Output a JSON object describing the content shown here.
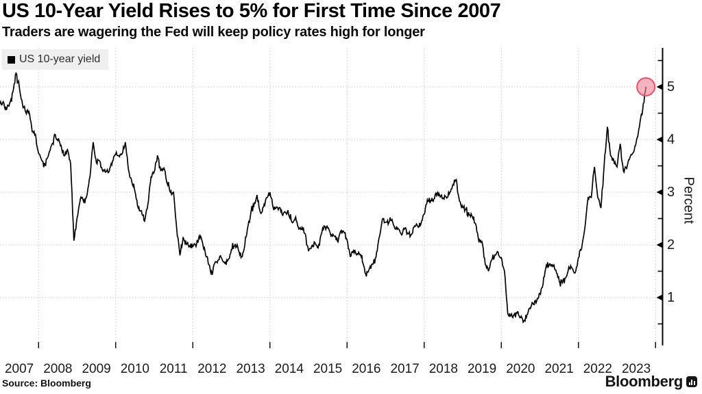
{
  "header": {
    "title": "US 10-Year Yield Rises to 5% for First Time Since 2007",
    "subtitle": "Traders are wagering the Fed will keep policy rates high for longer"
  },
  "legend": {
    "items": [
      {
        "label": "US 10-year yield",
        "swatch_color": "#000000"
      }
    ]
  },
  "footer": {
    "source_label": "Source: Bloomberg",
    "brand": "Bloomberg",
    "brand_icon": "bloomberg-bars-icon"
  },
  "colors": {
    "line": "#000000",
    "grid": "#c8c8c8",
    "axis": "#000000",
    "legend_bg": "#efefef",
    "highlight_fill": "#f38499",
    "highlight_stroke": "#e84964",
    "background": "#ffffff"
  },
  "chart_data": {
    "type": "line",
    "title": "US 10-Year Yield Rises to 5% for First Time Since 2007",
    "subtitle": "Traders are wagering the Fed will keep policy rates high for longer",
    "ylabel": "Percent",
    "xlabel": "",
    "x_tick_labels": [
      "2007",
      "2008",
      "2009",
      "2010",
      "2011",
      "2012",
      "2013",
      "2014",
      "2015",
      "2016",
      "2017",
      "2018",
      "2019",
      "2020",
      "2021",
      "2022",
      "2023"
    ],
    "y_ticks": [
      1,
      2,
      3,
      4,
      5
    ],
    "y_minor_ticks": [
      0.5,
      1.5,
      2.5,
      3.5,
      4.5,
      5.5
    ],
    "ylim": [
      0.1,
      5.75
    ],
    "xlim_years": [
      2007,
      2024
    ],
    "grid": "dotted; horizontal at integer percents, vertical every 2 years",
    "legend_position": "top-left",
    "annotation": {
      "shape": "circle",
      "x_year": 2023.75,
      "y_value": 5.0,
      "meaning": "10-year yield touches 5% in Oct 2023"
    },
    "series": [
      {
        "name": "US 10-year yield",
        "color": "#000000",
        "start_year": 2007,
        "interval_months": 1,
        "units": "percent",
        "values": [
          4.68,
          4.72,
          4.56,
          4.69,
          4.9,
          5.26,
          5.0,
          4.67,
          4.52,
          4.53,
          4.15,
          4.1,
          3.74,
          3.6,
          3.51,
          3.68,
          3.88,
          4.1,
          3.98,
          3.89,
          3.69,
          3.81,
          3.53,
          2.08,
          2.52,
          2.87,
          2.82,
          2.93,
          3.29,
          3.95,
          3.56,
          3.59,
          3.4,
          3.39,
          3.4,
          3.59,
          3.73,
          3.69,
          3.73,
          3.95,
          3.42,
          3.2,
          3.01,
          2.7,
          2.65,
          2.45,
          2.76,
          3.29,
          3.39,
          3.7,
          3.41,
          3.46,
          3.17,
          3.0,
          3.0,
          2.3,
          1.8,
          2.15,
          2.01,
          1.98,
          1.97,
          1.97,
          2.17,
          2.05,
          1.8,
          1.62,
          1.43,
          1.68,
          1.72,
          1.75,
          1.65,
          1.72,
          1.91,
          1.98,
          1.96,
          1.76,
          1.93,
          2.3,
          2.58,
          2.74,
          2.95,
          2.62,
          2.72,
          2.9,
          3.0,
          2.71,
          2.72,
          2.71,
          2.56,
          2.6,
          2.54,
          2.42,
          2.53,
          2.3,
          2.33,
          2.21,
          1.88,
          1.98,
          2.04,
          1.94,
          2.2,
          2.36,
          2.32,
          2.17,
          2.17,
          2.07,
          2.26,
          2.24,
          2.09,
          1.78,
          1.89,
          1.81,
          1.81,
          1.64,
          1.4,
          1.56,
          1.63,
          1.76,
          2.14,
          2.49,
          2.43,
          2.42,
          2.48,
          2.3,
          2.3,
          2.19,
          2.32,
          2.21,
          2.2,
          2.36,
          2.35,
          2.4,
          2.58,
          2.86,
          2.84,
          2.87,
          2.98,
          2.91,
          2.89,
          2.89,
          3.0,
          3.15,
          3.24,
          2.83,
          2.71,
          2.68,
          2.57,
          2.53,
          2.4,
          2.07,
          2.06,
          1.63,
          1.5,
          1.71,
          1.81,
          1.86,
          1.76,
          1.5,
          0.7,
          0.66,
          0.67,
          0.73,
          0.62,
          0.55,
          0.68,
          0.79,
          0.87,
          0.93,
          1.08,
          1.26,
          1.61,
          1.64,
          1.62,
          1.52,
          1.32,
          1.28,
          1.37,
          1.58,
          1.56,
          1.47,
          1.76,
          1.93,
          2.32,
          2.89,
          2.9,
          3.48,
          2.9,
          2.7,
          3.52,
          4.24,
          3.7,
          3.6,
          3.48,
          3.92,
          3.4,
          3.45,
          3.65,
          3.75,
          3.96,
          4.25,
          4.57,
          5.0
        ]
      }
    ]
  }
}
